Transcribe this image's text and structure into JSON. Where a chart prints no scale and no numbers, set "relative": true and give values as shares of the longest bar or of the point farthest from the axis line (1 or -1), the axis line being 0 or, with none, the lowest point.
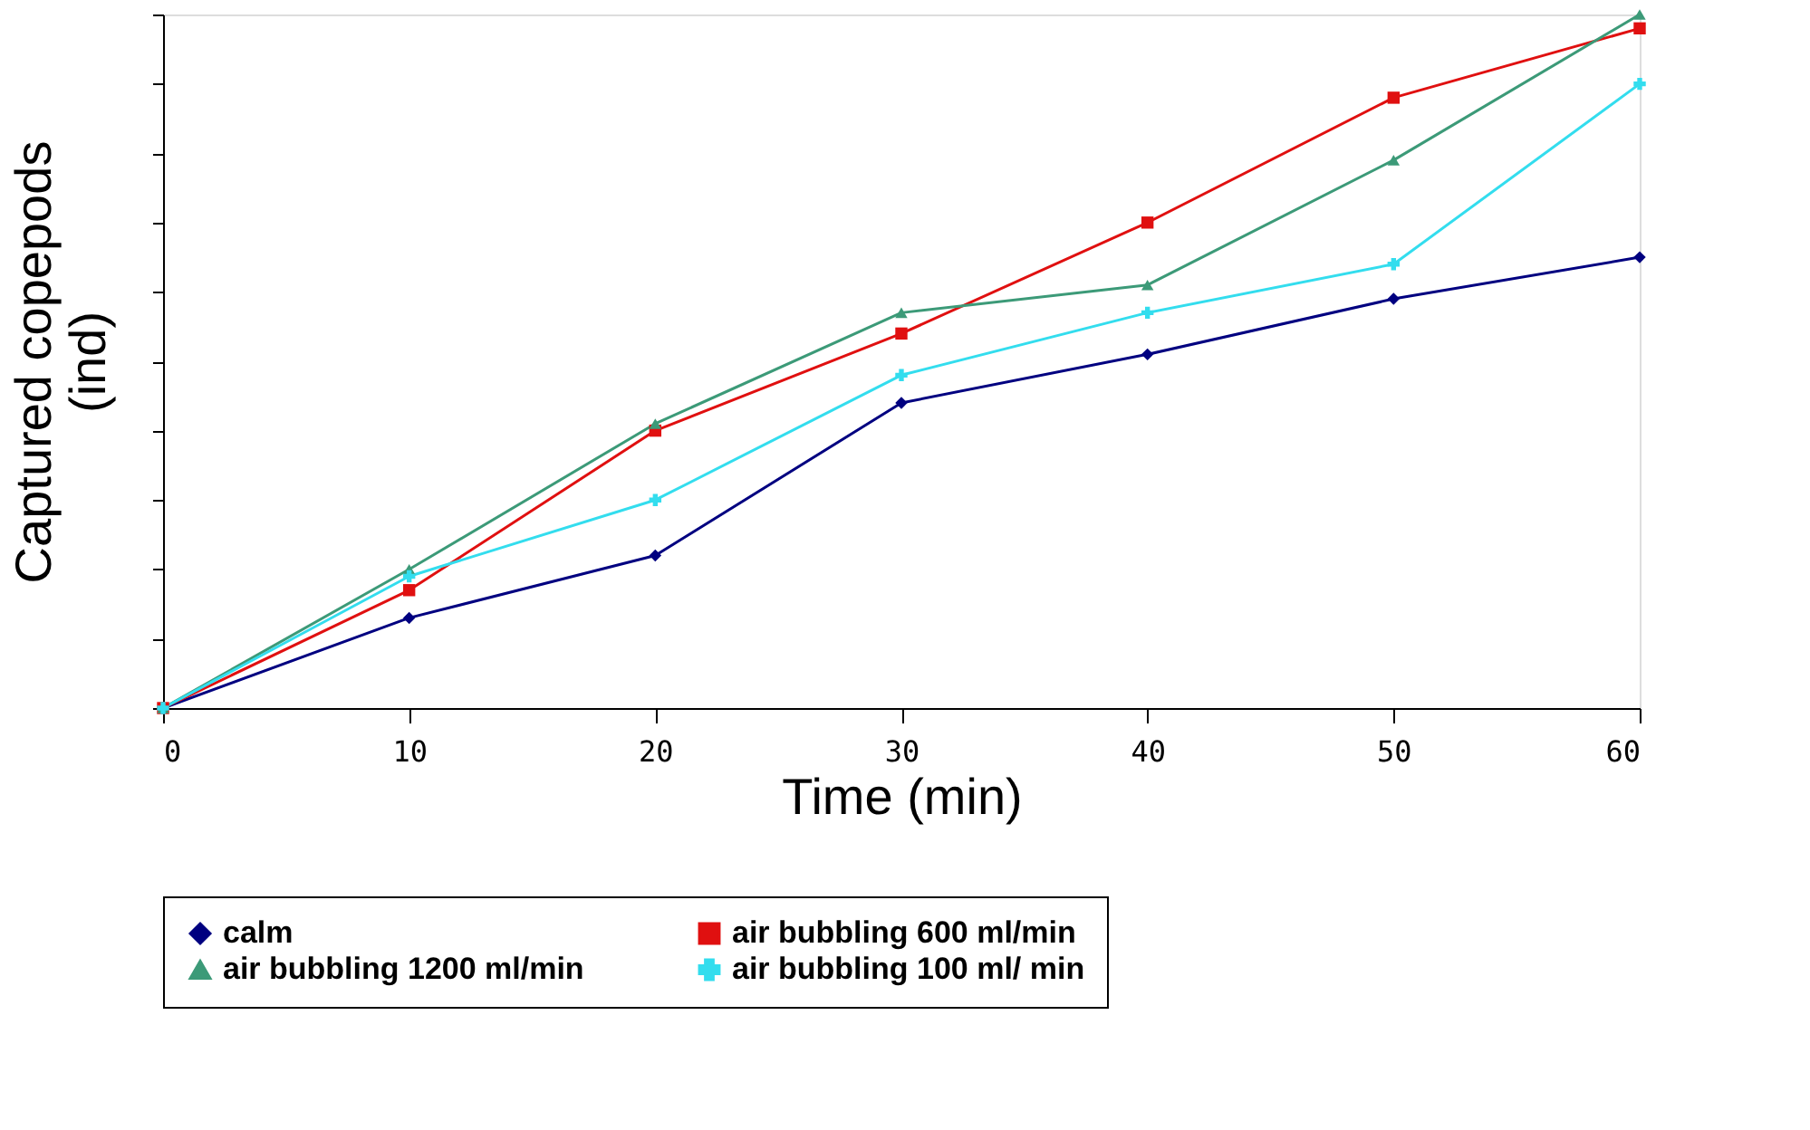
{
  "chart_data": {
    "type": "line",
    "relative": true,
    "xlabel": "Time (min)",
    "ylabel": "Captured copepods (ind)",
    "x": [
      0,
      10,
      20,
      30,
      40,
      50,
      60
    ],
    "xlim": [
      0,
      60
    ],
    "xticks": [
      0,
      10,
      20,
      30,
      40,
      50,
      60
    ],
    "tick_labels": "x",
    "grid": false,
    "legend": "bottom",
    "line_style": "solid",
    "series": [
      {
        "name": "calm",
        "color": "#000080",
        "marker": "diamond",
        "values": [
          0,
          0.13,
          0.22,
          0.44,
          0.51,
          0.59,
          0.65
        ]
      },
      {
        "name": "air bubbling 600 ml/min",
        "color": "#e01010",
        "marker": "square",
        "values": [
          0,
          0.17,
          0.4,
          0.54,
          0.7,
          0.88,
          0.98
        ]
      },
      {
        "name": "air bubbling 1200 ml/min",
        "color": "#3c9a78",
        "marker": "triangle",
        "values": [
          0,
          0.2,
          0.41,
          0.57,
          0.61,
          0.79,
          1
        ]
      },
      {
        "name": "air bubbling 100 ml/ min",
        "color": "#33ddee",
        "marker": "cross",
        "values": [
          0,
          0.19,
          0.3,
          0.48,
          0.57,
          0.64,
          0.9
        ]
      }
    ]
  }
}
